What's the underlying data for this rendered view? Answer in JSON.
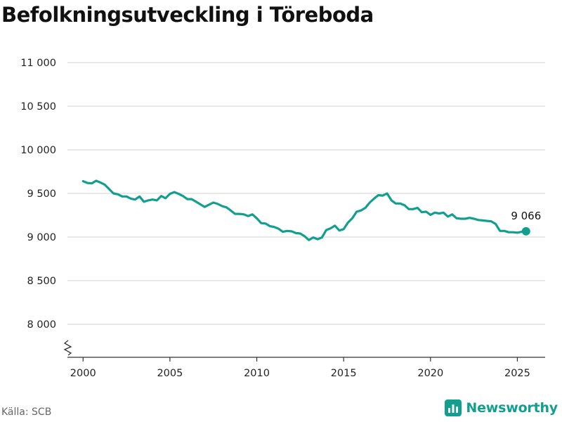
{
  "title": "Befolkningsutveckling i Töreboda",
  "source": "Källa: SCB",
  "brand": {
    "name": "Newsworthy",
    "icon": "bar-chart-icon",
    "color": "#139f8f"
  },
  "chart_data": {
    "type": "line",
    "title": "Befolkningsutveckling i Töreboda",
    "xlabel": "",
    "ylabel": "",
    "xlim": [
      1999.1,
      2026.6
    ],
    "ylim": [
      7800,
      11000
    ],
    "y_axis_break": true,
    "grid": "horizontal",
    "yticks": [
      8000,
      8500,
      9000,
      9500,
      10000,
      10500,
      11000
    ],
    "ytick_labels": [
      "8 000",
      "8 500",
      "9 000",
      "9 500",
      "10 000",
      "10 500",
      "11 000"
    ],
    "xticks": [
      2000,
      2005,
      2010,
      2015,
      2020,
      2025
    ],
    "xtick_labels": [
      "2000",
      "2005",
      "2010",
      "2015",
      "2020",
      "2025"
    ],
    "line_color": "#139f8f",
    "end_label": "9 066",
    "series": [
      {
        "x": [
          2000.0,
          2000.25,
          2000.5,
          2000.75,
          2001.0,
          2001.25,
          2001.5,
          2001.75,
          2002.0,
          2002.25,
          2002.5,
          2002.75,
          2003.0,
          2003.25,
          2003.5,
          2003.75,
          2004.0,
          2004.25,
          2004.5,
          2004.75,
          2005.0,
          2005.25,
          2005.5,
          2005.75,
          2006.0,
          2006.25,
          2006.5,
          2006.75,
          2007.0,
          2007.25,
          2007.5,
          2007.75,
          2008.0,
          2008.25,
          2008.5,
          2008.75,
          2009.0,
          2009.25,
          2009.5,
          2009.75,
          2010.0,
          2010.25,
          2010.5,
          2010.75,
          2011.0,
          2011.25,
          2011.5,
          2011.75,
          2012.0,
          2012.25,
          2012.5,
          2012.75,
          2013.0,
          2013.25,
          2013.5,
          2013.75,
          2014.0,
          2014.25,
          2014.5,
          2014.75,
          2015.0,
          2015.25,
          2015.5,
          2015.75,
          2016.0,
          2016.25,
          2016.5,
          2016.75,
          2017.0,
          2017.25,
          2017.5,
          2017.75,
          2018.0,
          2018.25,
          2018.5,
          2018.75,
          2019.0,
          2019.25,
          2019.5,
          2019.75,
          2020.0,
          2020.25,
          2020.5,
          2020.75,
          2021.0,
          2021.25,
          2021.5,
          2021.75,
          2022.0,
          2022.25,
          2022.5,
          2022.75,
          2023.0,
          2023.25,
          2023.5,
          2023.75,
          2024.0,
          2024.25,
          2024.5,
          2024.75,
          2025.0,
          2025.25,
          2025.5
        ],
        "y": [
          9640,
          9620,
          9615,
          9645,
          9625,
          9600,
          9550,
          9500,
          9490,
          9465,
          9465,
          9440,
          9430,
          9465,
          9405,
          9420,
          9430,
          9420,
          9470,
          9445,
          9495,
          9515,
          9495,
          9470,
          9435,
          9435,
          9405,
          9375,
          9345,
          9370,
          9395,
          9380,
          9355,
          9340,
          9305,
          9265,
          9265,
          9260,
          9240,
          9260,
          9215,
          9160,
          9155,
          9125,
          9115,
          9095,
          9060,
          9070,
          9065,
          9045,
          9040,
          9010,
          8965,
          8995,
          8975,
          8995,
          9080,
          9100,
          9130,
          9075,
          9090,
          9165,
          9215,
          9290,
          9305,
          9335,
          9395,
          9440,
          9480,
          9475,
          9500,
          9420,
          9385,
          9385,
          9365,
          9320,
          9320,
          9335,
          9285,
          9290,
          9255,
          9280,
          9270,
          9280,
          9235,
          9260,
          9215,
          9210,
          9210,
          9220,
          9210,
          9195,
          9190,
          9185,
          9180,
          9150,
          9070,
          9070,
          9055,
          9055,
          9050,
          9060,
          9066
        ]
      }
    ]
  }
}
